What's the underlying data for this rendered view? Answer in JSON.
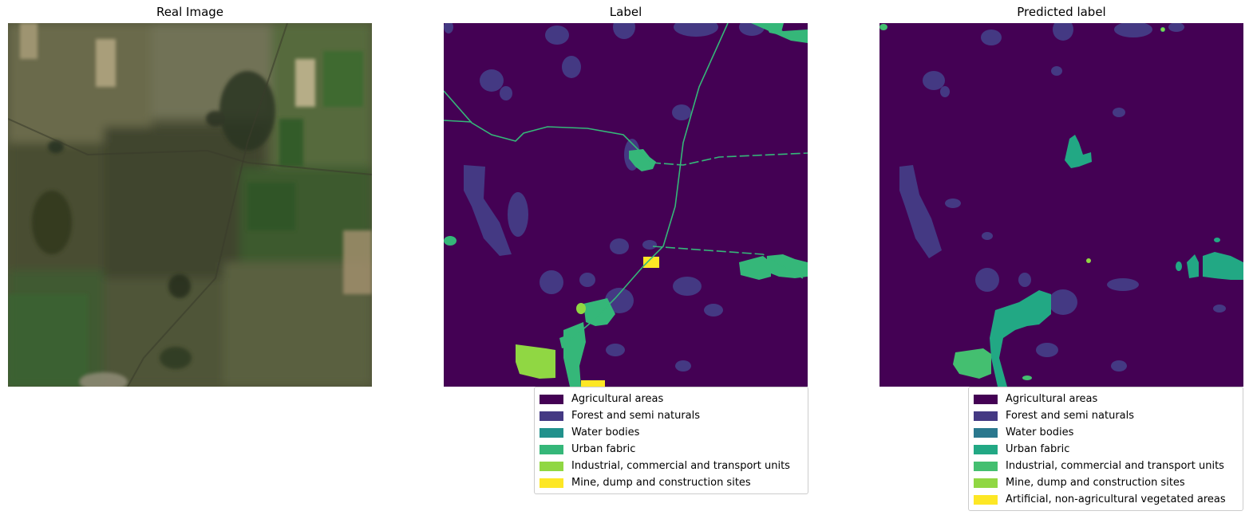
{
  "panels": {
    "real": {
      "title": "Real Image"
    },
    "label": {
      "title": "Label"
    },
    "predicted": {
      "title": "Predicted label"
    }
  },
  "legend_label": {
    "items": [
      {
        "text": "Agricultural areas",
        "color": "#440154"
      },
      {
        "text": "Forest and semi naturals",
        "color": "#443983"
      },
      {
        "text": "Water bodies",
        "color": "#21918c"
      },
      {
        "text": "Urban fabric",
        "color": "#35b779"
      },
      {
        "text": "Industrial, commercial and transport units",
        "color": "#90d743"
      },
      {
        "text": "Mine, dump and construction sites",
        "color": "#fde725"
      }
    ]
  },
  "legend_predicted": {
    "items": [
      {
        "text": "Agricultural areas",
        "color": "#440154"
      },
      {
        "text": "Forest and semi naturals",
        "color": "#443983"
      },
      {
        "text": "Water bodies",
        "color": "#2a788e"
      },
      {
        "text": "Urban fabric",
        "color": "#22a884"
      },
      {
        "text": "Industrial, commercial and transport units",
        "color": "#44bf70"
      },
      {
        "text": "Mine, dump and construction sites",
        "color": "#90d743"
      },
      {
        "text": "Artificial, non-agricultural vegetated areas",
        "color": "#fde725"
      }
    ]
  }
}
